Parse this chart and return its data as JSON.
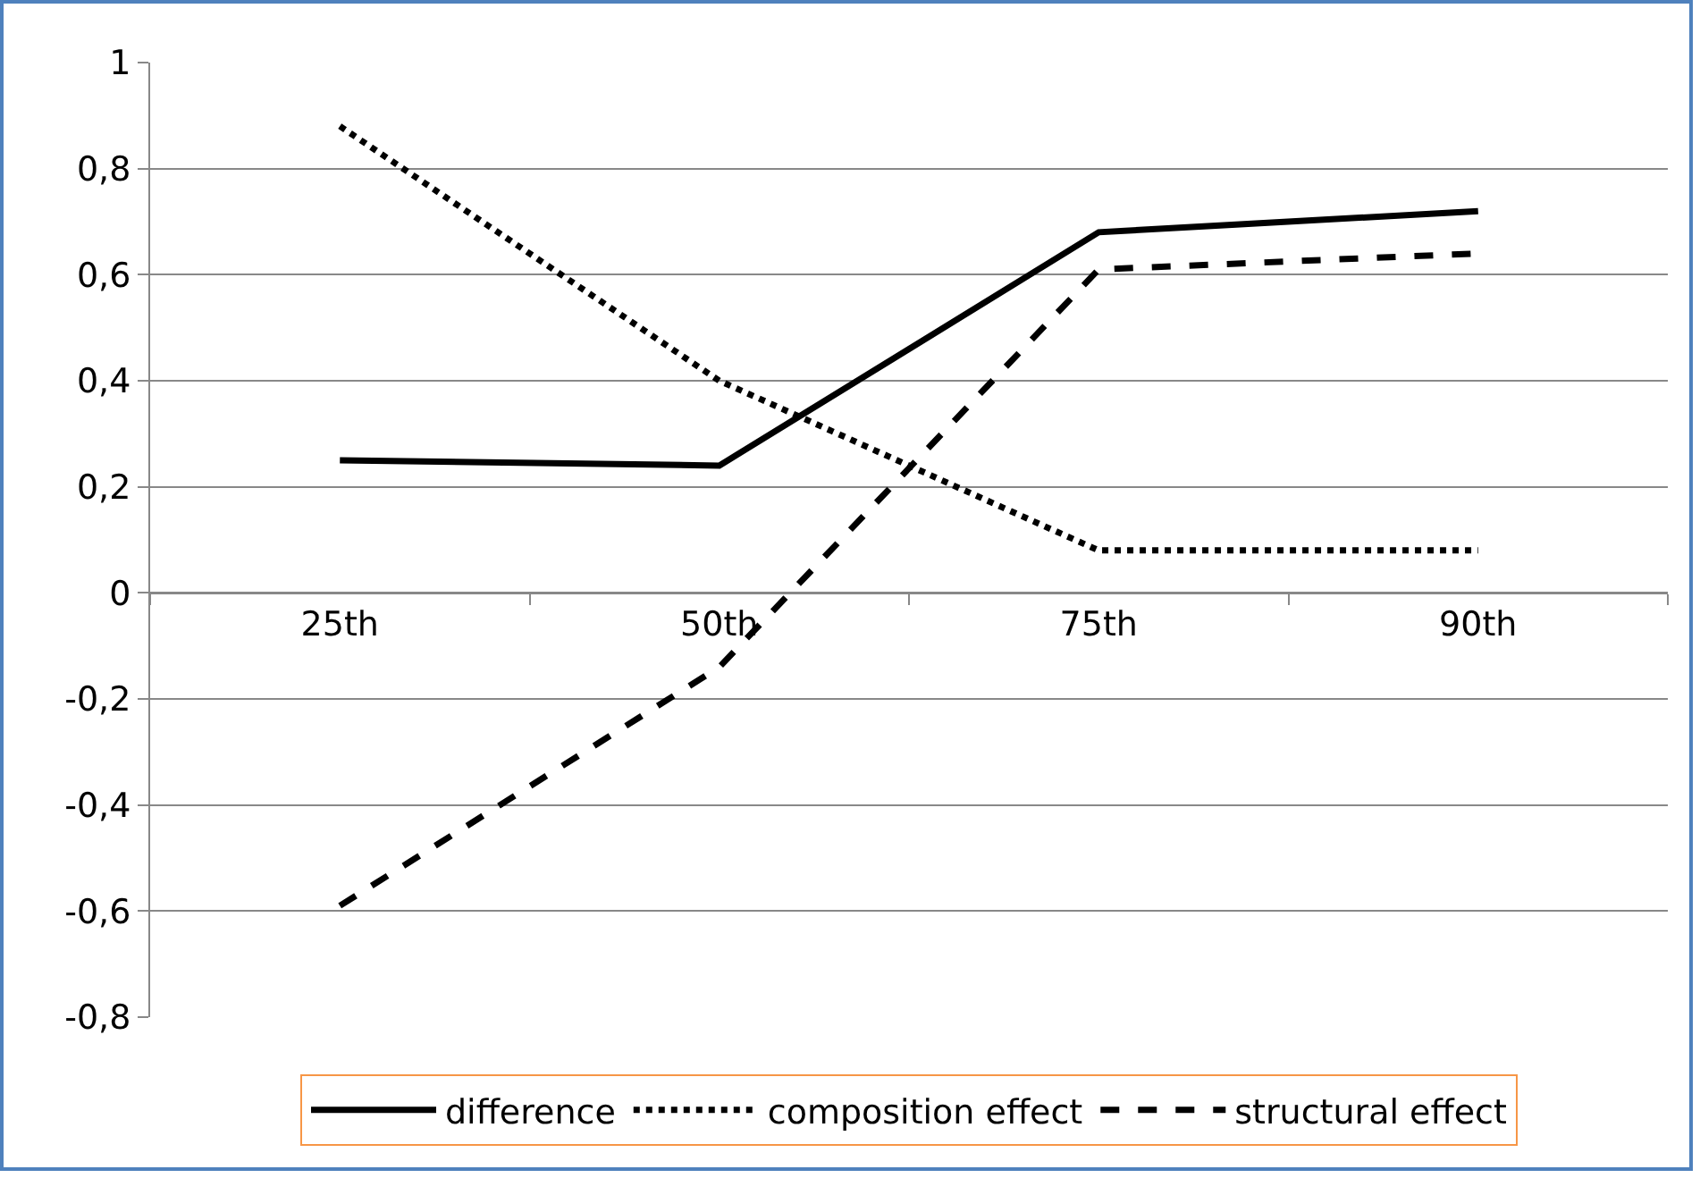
{
  "chart_data": {
    "type": "line",
    "categories": [
      "25th",
      "50th",
      "75th",
      "90th"
    ],
    "series": [
      {
        "name": "difference",
        "color": "#000000",
        "line_style": "solid",
        "values": [
          0.25,
          0.24,
          0.68,
          0.72
        ]
      },
      {
        "name": "composition effect",
        "color": "#000000",
        "line_style": "dotted",
        "values": [
          0.88,
          0.4,
          0.08,
          0.08
        ]
      },
      {
        "name": "structural effect",
        "color": "#000000",
        "line_style": "dashed",
        "values": [
          -0.59,
          -0.14,
          0.61,
          0.64
        ]
      }
    ],
    "ylim": [
      -0.8,
      1
    ],
    "yticks": [
      {
        "value": -0.8,
        "label": "-0,8"
      },
      {
        "value": -0.6,
        "label": "-0,6"
      },
      {
        "value": -0.4,
        "label": "-0,4"
      },
      {
        "value": -0.2,
        "label": "-0,2"
      },
      0,
      {
        "value": 0.2,
        "label": "0,2"
      },
      {
        "value": 0.4,
        "label": "0,4"
      },
      {
        "value": 0.6,
        "label": "0,6"
      },
      {
        "value": 0.8,
        "label": "0,8"
      },
      1
    ],
    "grid": "y",
    "legend": "bottom",
    "marker": "none"
  }
}
